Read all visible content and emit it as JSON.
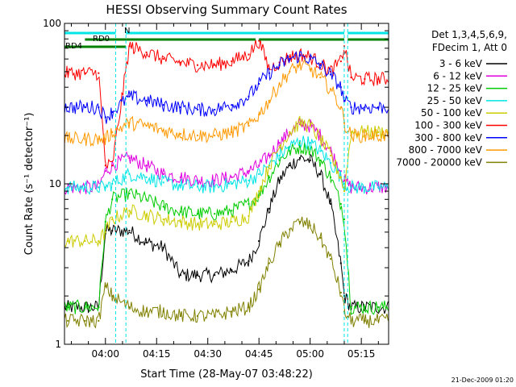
{
  "chart_data": {
    "type": "line",
    "title": "HESSI Observing Summary Count Rates",
    "xlabel": "Start Time (28-May-07 03:48:22)",
    "ylabel": "Count Rate (s⁻¹ detector⁻¹)",
    "y_scale": "log",
    "ylim": [
      1,
      100
    ],
    "xlim": [
      "03:48",
      "05:23"
    ],
    "x_ticks": [
      "04:00",
      "04:15",
      "04:30",
      "04:45",
      "05:00",
      "05:15"
    ],
    "y_ticks": [
      "1",
      "10",
      "100"
    ],
    "grid": false,
    "legend_position": "right",
    "legend_header": [
      "Det 1,3,4,5,6,9,",
      "FDecim 1, Att 0"
    ],
    "footer_date": "21-Dec-2009 01:20",
    "x": [
      "03:49",
      "03:54",
      "03:58",
      "04:00",
      "04:02",
      "04:07",
      "04:12",
      "04:17",
      "04:22",
      "04:27",
      "04:32",
      "04:37",
      "04:42",
      "04:45",
      "04:48",
      "04:51",
      "04:54",
      "04:57",
      "05:00",
      "05:03",
      "05:06",
      "05:09",
      "05:10",
      "05:12",
      "05:16",
      "05:20"
    ],
    "series": [
      {
        "name": "3 - 6 keV",
        "color": "#000000",
        "values": [
          1.7,
          1.7,
          1.7,
          5.1,
          5.1,
          5.1,
          4.3,
          4.0,
          2.7,
          2.7,
          2.7,
          2.9,
          3.3,
          4.4,
          7.0,
          10.5,
          13.0,
          14.5,
          14.0,
          11.5,
          7.5,
          3.2,
          2.0,
          1.7,
          1.7,
          1.7
        ]
      },
      {
        "name": "6 - 12 keV",
        "color": "#e000e0",
        "values": [
          9.5,
          9.5,
          9.5,
          12,
          13,
          14.5,
          13,
          11.5,
          11,
          10.5,
          10.5,
          11,
          12,
          13,
          15,
          18,
          21,
          23.5,
          23,
          20,
          16,
          12,
          10.5,
          9.5,
          9.5,
          9.5
        ]
      },
      {
        "name": "12 - 25 keV",
        "color": "#00cc00",
        "values": [
          1.7,
          1.7,
          1.7,
          5.8,
          8.0,
          8.7,
          8.0,
          7.2,
          6.7,
          6.5,
          6.5,
          6.8,
          7.5,
          8.5,
          11,
          14,
          16,
          17,
          16.5,
          14,
          11,
          7.5,
          6.0,
          1.7,
          1.7,
          1.7
        ]
      },
      {
        "name": "25 - 50 keV",
        "color": "#00e5e5",
        "values": [
          9.5,
          9.5,
          9.5,
          9.5,
          10,
          11.5,
          11,
          10.2,
          9.8,
          9.6,
          9.6,
          10,
          10.5,
          11.5,
          13,
          15,
          17,
          18.5,
          18,
          16,
          13.5,
          11,
          10,
          9.5,
          9.5,
          9.5
        ]
      },
      {
        "name": "50 - 100 keV",
        "color": "#cccc00",
        "values": [
          4.4,
          4.4,
          4.4,
          5.0,
          6.0,
          6.8,
          6.4,
          6.0,
          5.8,
          5.6,
          5.6,
          5.8,
          6.3,
          9.0,
          13,
          17,
          21,
          24,
          23,
          19,
          15,
          11,
          9,
          21,
          21,
          21
        ]
      },
      {
        "name": "100 - 300 keV",
        "color": "#ff0000",
        "values": [
          49,
          49,
          49,
          13,
          13,
          72,
          66,
          60,
          57,
          55,
          55,
          58,
          64,
          78,
          52,
          57,
          62,
          64,
          62,
          56,
          50,
          58,
          72,
          46,
          45,
          45
        ]
      },
      {
        "name": "300 - 800 keV",
        "color": "#0000ff",
        "values": [
          30,
          30,
          30,
          26,
          28,
          35,
          33,
          31,
          30,
          29,
          29,
          31,
          35,
          42,
          49,
          55,
          60,
          63,
          60,
          55,
          48,
          40,
          33,
          30,
          30,
          30
        ]
      },
      {
        "name": "800 - 7000 keV",
        "color": "#ff9900",
        "values": [
          19,
          19,
          19,
          19,
          21,
          24,
          23,
          21.5,
          20.5,
          20,
          20,
          21,
          23,
          27,
          33,
          42,
          50,
          55,
          52,
          46,
          39,
          30,
          24,
          20,
          20,
          20
        ]
      },
      {
        "name": "7000 - 20000 keV",
        "color": "#808000",
        "values": [
          1.4,
          1.4,
          1.4,
          2.3,
          2.0,
          1.7,
          1.6,
          1.6,
          1.5,
          1.5,
          1.5,
          1.6,
          1.7,
          2.2,
          3.2,
          4.2,
          5.2,
          5.8,
          5.5,
          4.6,
          3.4,
          2.1,
          1.6,
          1.4,
          1.4,
          1.4
        ]
      }
    ],
    "flags": [
      {
        "label": "N",
        "color": "#00e5e5",
        "segments": [
          [
            "03:48",
            "04:03"
          ],
          [
            "04:06",
            "05:10"
          ],
          [
            "05:11",
            "05:23"
          ]
        ],
        "level": "upper"
      },
      {
        "label": "RD0",
        "color": "#008000",
        "segments": [
          [
            "03:54",
            "04:06"
          ],
          [
            "04:06",
            "04:44"
          ],
          [
            "04:45",
            "05:10"
          ],
          [
            "05:11",
            "05:23"
          ]
        ],
        "level": "middle"
      },
      {
        "label": "RD4",
        "color": "#008000",
        "segments": [
          [
            "03:48",
            "04:06"
          ]
        ],
        "level": "lower"
      }
    ]
  }
}
